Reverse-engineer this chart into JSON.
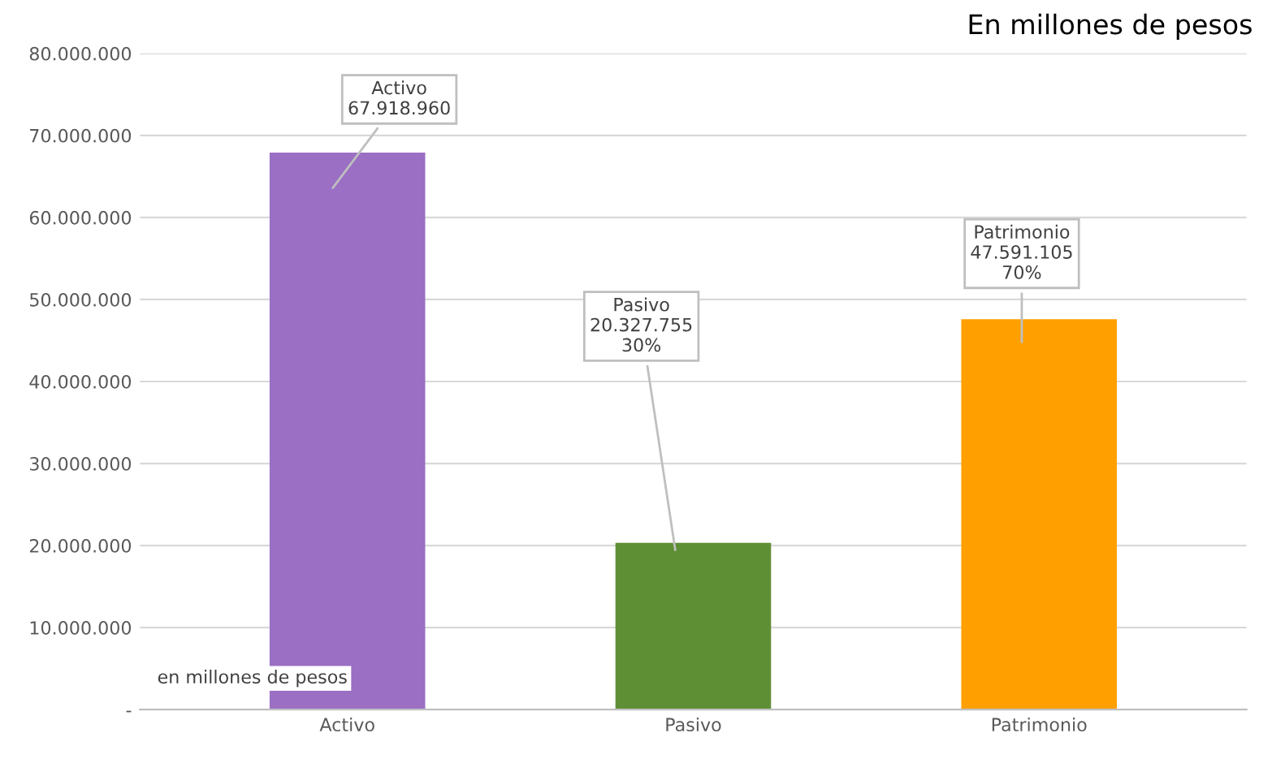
{
  "chart_data": {
    "type": "bar",
    "title": "En millones de pesos",
    "categories": [
      "Activo",
      "Pasivo",
      "Patrimonio"
    ],
    "values": [
      67918960,
      20327755,
      47591105
    ],
    "colors": [
      "#9a6fc4",
      "#5f8f35",
      "#ffa000"
    ],
    "value_labels": [
      "Activo\n67.918.960",
      "Pasivo\n20.327.755\n30%",
      "Patrimonio\n47.591.105\n70%"
    ],
    "ylim": [
      0,
      80000000
    ],
    "yticks": [
      {
        "value": 0,
        "label": "-"
      },
      {
        "value": 10000000,
        "label": "10.000.000"
      },
      {
        "value": 20000000,
        "label": "20.000.000"
      },
      {
        "value": 30000000,
        "label": "30.000.000"
      },
      {
        "value": 40000000,
        "label": "40.000.000"
      },
      {
        "value": 50000000,
        "label": "50.000.000"
      },
      {
        "value": 60000000,
        "label": "60.000.000"
      },
      {
        "value": 70000000,
        "label": "70.000.000"
      },
      {
        "value": 80000000,
        "label": "80.000.000"
      }
    ],
    "grid": "y",
    "annotations": [
      "en millones de pesos"
    ]
  }
}
